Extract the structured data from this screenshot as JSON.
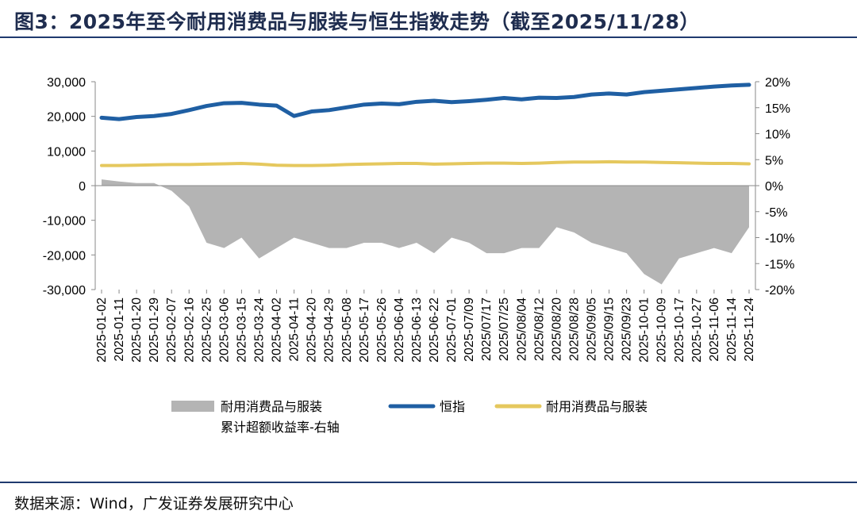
{
  "title": "图3：2025年至今耐用消费品与服装与恒生指数走势（截至2025/11/28）",
  "source": "数据来源：Wind，广发证券发展研究中心",
  "chart_data": {
    "type": "line",
    "left_axis": {
      "ylim": [
        -30000,
        30000
      ],
      "ticks": [
        "30,000",
        "20,000",
        "10,000",
        "0",
        "-10,000",
        "-20,000",
        "-30,000"
      ]
    },
    "right_axis": {
      "ylim": [
        -20,
        20
      ],
      "ticks": [
        "20%",
        "15%",
        "10%",
        "5%",
        "0%",
        "-5%",
        "-10%",
        "-15%",
        "-20%"
      ]
    },
    "x_tick_labels": [
      "2025-01-02",
      "2025-01-11",
      "2025-01-20",
      "2025-01-29",
      "2025-02-07",
      "2025-02-16",
      "2025-02-25",
      "2025-03-06",
      "2025-03-15",
      "2025-03-24",
      "2025-04-02",
      "2025-04-11",
      "2025-04-20",
      "2025-04-29",
      "2025-05-08",
      "2025-05-17",
      "2025-05-26",
      "2025-06-04",
      "2025-06-13",
      "2025-06-22",
      "2025-07-01",
      "2025-07/09",
      "2025/07/17",
      "2025/07/25",
      "2025/08/04",
      "2025/08/12",
      "2025/08/20",
      "2025/08/28",
      "2025/09/05",
      "2025/09/15",
      "2025/09/23",
      "2025-10-01",
      "2025-10-09",
      "2025-10-17",
      "2025-10-27",
      "2025-11-06",
      "2025-11-14",
      "2025-11-24"
    ],
    "series": [
      {
        "name": "恒指",
        "axis": "left",
        "color": "#1f5fa3",
        "values": [
          19600,
          19200,
          19800,
          20100,
          20700,
          21800,
          23000,
          23800,
          23900,
          23400,
          23100,
          20100,
          21400,
          21800,
          22600,
          23400,
          23700,
          23500,
          24200,
          24500,
          24100,
          24400,
          24800,
          25300,
          24900,
          25400,
          25300,
          25600,
          26300,
          26600,
          26300,
          27000,
          27400,
          27800,
          28200,
          28600,
          28900,
          29100
        ]
      },
      {
        "name": "耐用消费品与服装",
        "axis": "left",
        "color": "#e5c85e",
        "values": [
          5800,
          5800,
          5900,
          6000,
          6100,
          6100,
          6200,
          6300,
          6400,
          6200,
          5900,
          5800,
          5800,
          5900,
          6100,
          6200,
          6300,
          6400,
          6400,
          6200,
          6300,
          6400,
          6500,
          6500,
          6400,
          6500,
          6700,
          6800,
          6800,
          6900,
          6800,
          6800,
          6700,
          6600,
          6500,
          6400,
          6400,
          6300
        ]
      },
      {
        "name": "耐用消费品与服装累计超额收益率-右轴",
        "axis": "right",
        "color": "#b4b4b4",
        "values": [
          1.2,
          0.8,
          0.5,
          0.5,
          -1,
          -4,
          -11,
          -12,
          -10,
          -14,
          -12,
          -10,
          -11,
          -12,
          -12,
          -11,
          -11,
          -12,
          -11,
          -13,
          -10,
          -11,
          -13,
          -13,
          -12,
          -12,
          -8,
          -9,
          -11,
          -12,
          -13,
          -17,
          -19,
          -14,
          -13,
          -12,
          -13,
          -8
        ]
      }
    ],
    "legend": [
      "耐用消费品与服装累计超额收益率-右轴",
      "恒指",
      "耐用消费品与服装"
    ],
    "legend_placement": "bottom"
  }
}
